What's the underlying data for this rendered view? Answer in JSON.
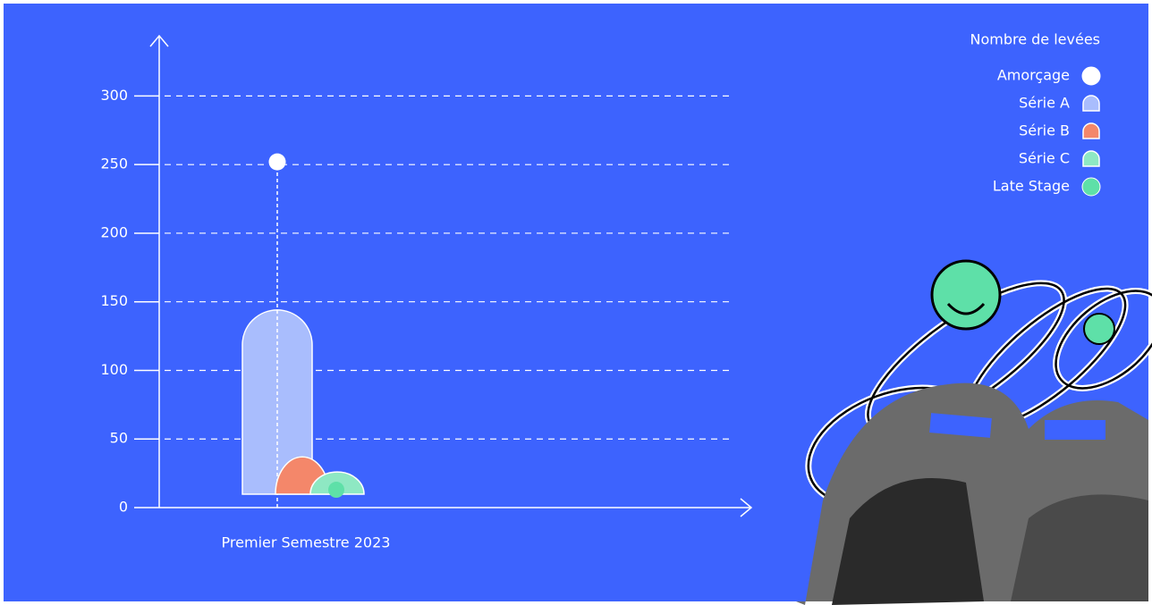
{
  "chart_data": {
    "type": "bar",
    "categories": [
      "Premier Semestre 2023"
    ],
    "legend_title": "Nombre de levées",
    "series": [
      {
        "name": "Amorçage",
        "color": "#ffffff",
        "shape": "dot",
        "values": [
          252
        ]
      },
      {
        "name": "Série A",
        "color": "#a9bdfd",
        "shape": "arch",
        "values": [
          144
        ]
      },
      {
        "name": "Série B",
        "color": "#f4876a",
        "shape": "dome",
        "values": [
          37
        ]
      },
      {
        "name": "Série C",
        "color": "#8ee8c3",
        "shape": "dome",
        "values": [
          26
        ]
      },
      {
        "name": "Late Stage",
        "color": "#5ee0a8",
        "shape": "dot",
        "values": [
          13
        ]
      }
    ],
    "ylim": [
      0,
      340
    ],
    "yticks": [
      0,
      50,
      100,
      150,
      200,
      250,
      300
    ],
    "grid": true,
    "legend": "top-right"
  }
}
